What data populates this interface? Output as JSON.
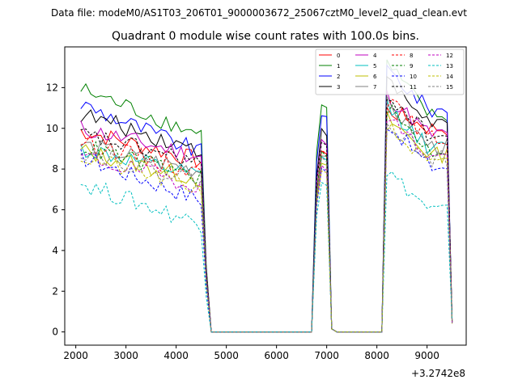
{
  "figure": {
    "suptitle": "Data file: modeM0/AS1T03_206T01_9000003672_25067cztM0_level2_quad_clean.evt",
    "title": "Quadrant 0 module wise count rates with 100.0s bins.",
    "x_offset_label": "+3.2742e8"
  },
  "chart_data": {
    "type": "line",
    "title": "Quadrant 0 module wise count rates with 100.0s bins.",
    "xlabel": "",
    "ylabel": "",
    "x_offset": 327420000,
    "xlim": [
      1780,
      9780
    ],
    "ylim": [
      -0.65,
      14.0
    ],
    "xticks": [
      2000,
      3000,
      4000,
      5000,
      6000,
      7000,
      8000,
      9000
    ],
    "yticks": [
      0,
      2,
      4,
      6,
      8,
      10,
      12
    ],
    "legend_position": "top-right",
    "segments": [
      {
        "t_start": 2100,
        "t_end": 4700,
        "step": 100,
        "active_until": 4500
      },
      {
        "t_start": 4700,
        "t_end": 6700,
        "step": 100,
        "zero": true
      },
      {
        "t_start": 6700,
        "t_end": 7200,
        "step": 100,
        "peak": [
          6800,
          6900,
          7000
        ],
        "post": [
          7100,
          7200
        ]
      },
      {
        "t_start": 7200,
        "t_end": 8100,
        "step": 100,
        "zero": true
      },
      {
        "t_start": 8100,
        "t_end": 9500,
        "step": 100
      }
    ],
    "series": [
      {
        "name": "0",
        "color": "#ff0000",
        "dash": "solid",
        "base1": 9.9,
        "end1": 8.4,
        "peak": 8.9,
        "peak2": 10.9,
        "end2": 10.0
      },
      {
        "name": "1",
        "color": "#008000",
        "dash": "solid",
        "base1": 11.9,
        "end1": 9.7,
        "peak": 11.2,
        "peak2": 13.2,
        "end2": 10.6
      },
      {
        "name": "2",
        "color": "#0000ff",
        "dash": "solid",
        "base1": 11.2,
        "end1": 8.8,
        "peak": 10.7,
        "peak2": 12.9,
        "end2": 10.9
      },
      {
        "name": "3",
        "color": "#000000",
        "dash": "solid",
        "base1": 10.7,
        "end1": 8.9,
        "peak": 9.9,
        "peak2": 12.3,
        "end2": 10.3
      },
      {
        "name": "4",
        "color": "#bf00bf",
        "dash": "solid",
        "base1": 10.0,
        "end1": 8.6,
        "peak": 9.4,
        "peak2": 11.6,
        "end2": 9.7
      },
      {
        "name": "5",
        "color": "#00bfbf",
        "dash": "solid",
        "base1": 9.0,
        "end1": 7.6,
        "peak": 8.6,
        "peak2": 11.1,
        "end2": 9.0
      },
      {
        "name": "6",
        "color": "#bfbf00",
        "dash": "solid",
        "base1": 8.9,
        "end1": 7.5,
        "peak": 8.3,
        "peak2": 10.5,
        "end2": 8.7
      },
      {
        "name": "7",
        "color": "#808080",
        "dash": "solid",
        "base1": 9.2,
        "end1": 7.9,
        "peak": 8.7,
        "peak2": 11.2,
        "end2": 9.1
      },
      {
        "name": "8",
        "color": "#ff0000",
        "dash": "dashed",
        "base1": 9.4,
        "end1": 7.8,
        "peak": 9.0,
        "peak2": 11.4,
        "end2": 9.5
      },
      {
        "name": "9",
        "color": "#008000",
        "dash": "dashed",
        "base1": 9.1,
        "end1": 7.6,
        "peak": 8.8,
        "peak2": 11.0,
        "end2": 8.9
      },
      {
        "name": "10",
        "color": "#0000ff",
        "dash": "dashed",
        "base1": 8.6,
        "end1": 6.5,
        "peak": 8.0,
        "peak2": 10.3,
        "end2": 8.1
      },
      {
        "name": "11",
        "color": "#000000",
        "dash": "dashed",
        "base1": 9.7,
        "end1": 8.3,
        "peak": 9.3,
        "peak2": 11.7,
        "end2": 9.6
      },
      {
        "name": "12",
        "color": "#bf00bf",
        "dash": "dashed",
        "base1": 8.6,
        "end1": 7.2,
        "peak": 8.2,
        "peak2": 10.6,
        "end2": 8.6
      },
      {
        "name": "13",
        "color": "#00bfbf",
        "dash": "dashed",
        "base1": 7.3,
        "end1": 5.3,
        "peak": 7.4,
        "peak2": 7.9,
        "end2": 6.0
      },
      {
        "name": "14",
        "color": "#bfbf00",
        "dash": "dashed",
        "base1": 8.6,
        "end1": 7.0,
        "peak": 8.0,
        "peak2": 10.1,
        "end2": 8.2
      },
      {
        "name": "15",
        "color": "#808080",
        "dash": "dashed",
        "base1": 8.9,
        "end1": 7.4,
        "peak": 8.5,
        "peak2": 10.4,
        "end2": 8.5
      }
    ]
  }
}
